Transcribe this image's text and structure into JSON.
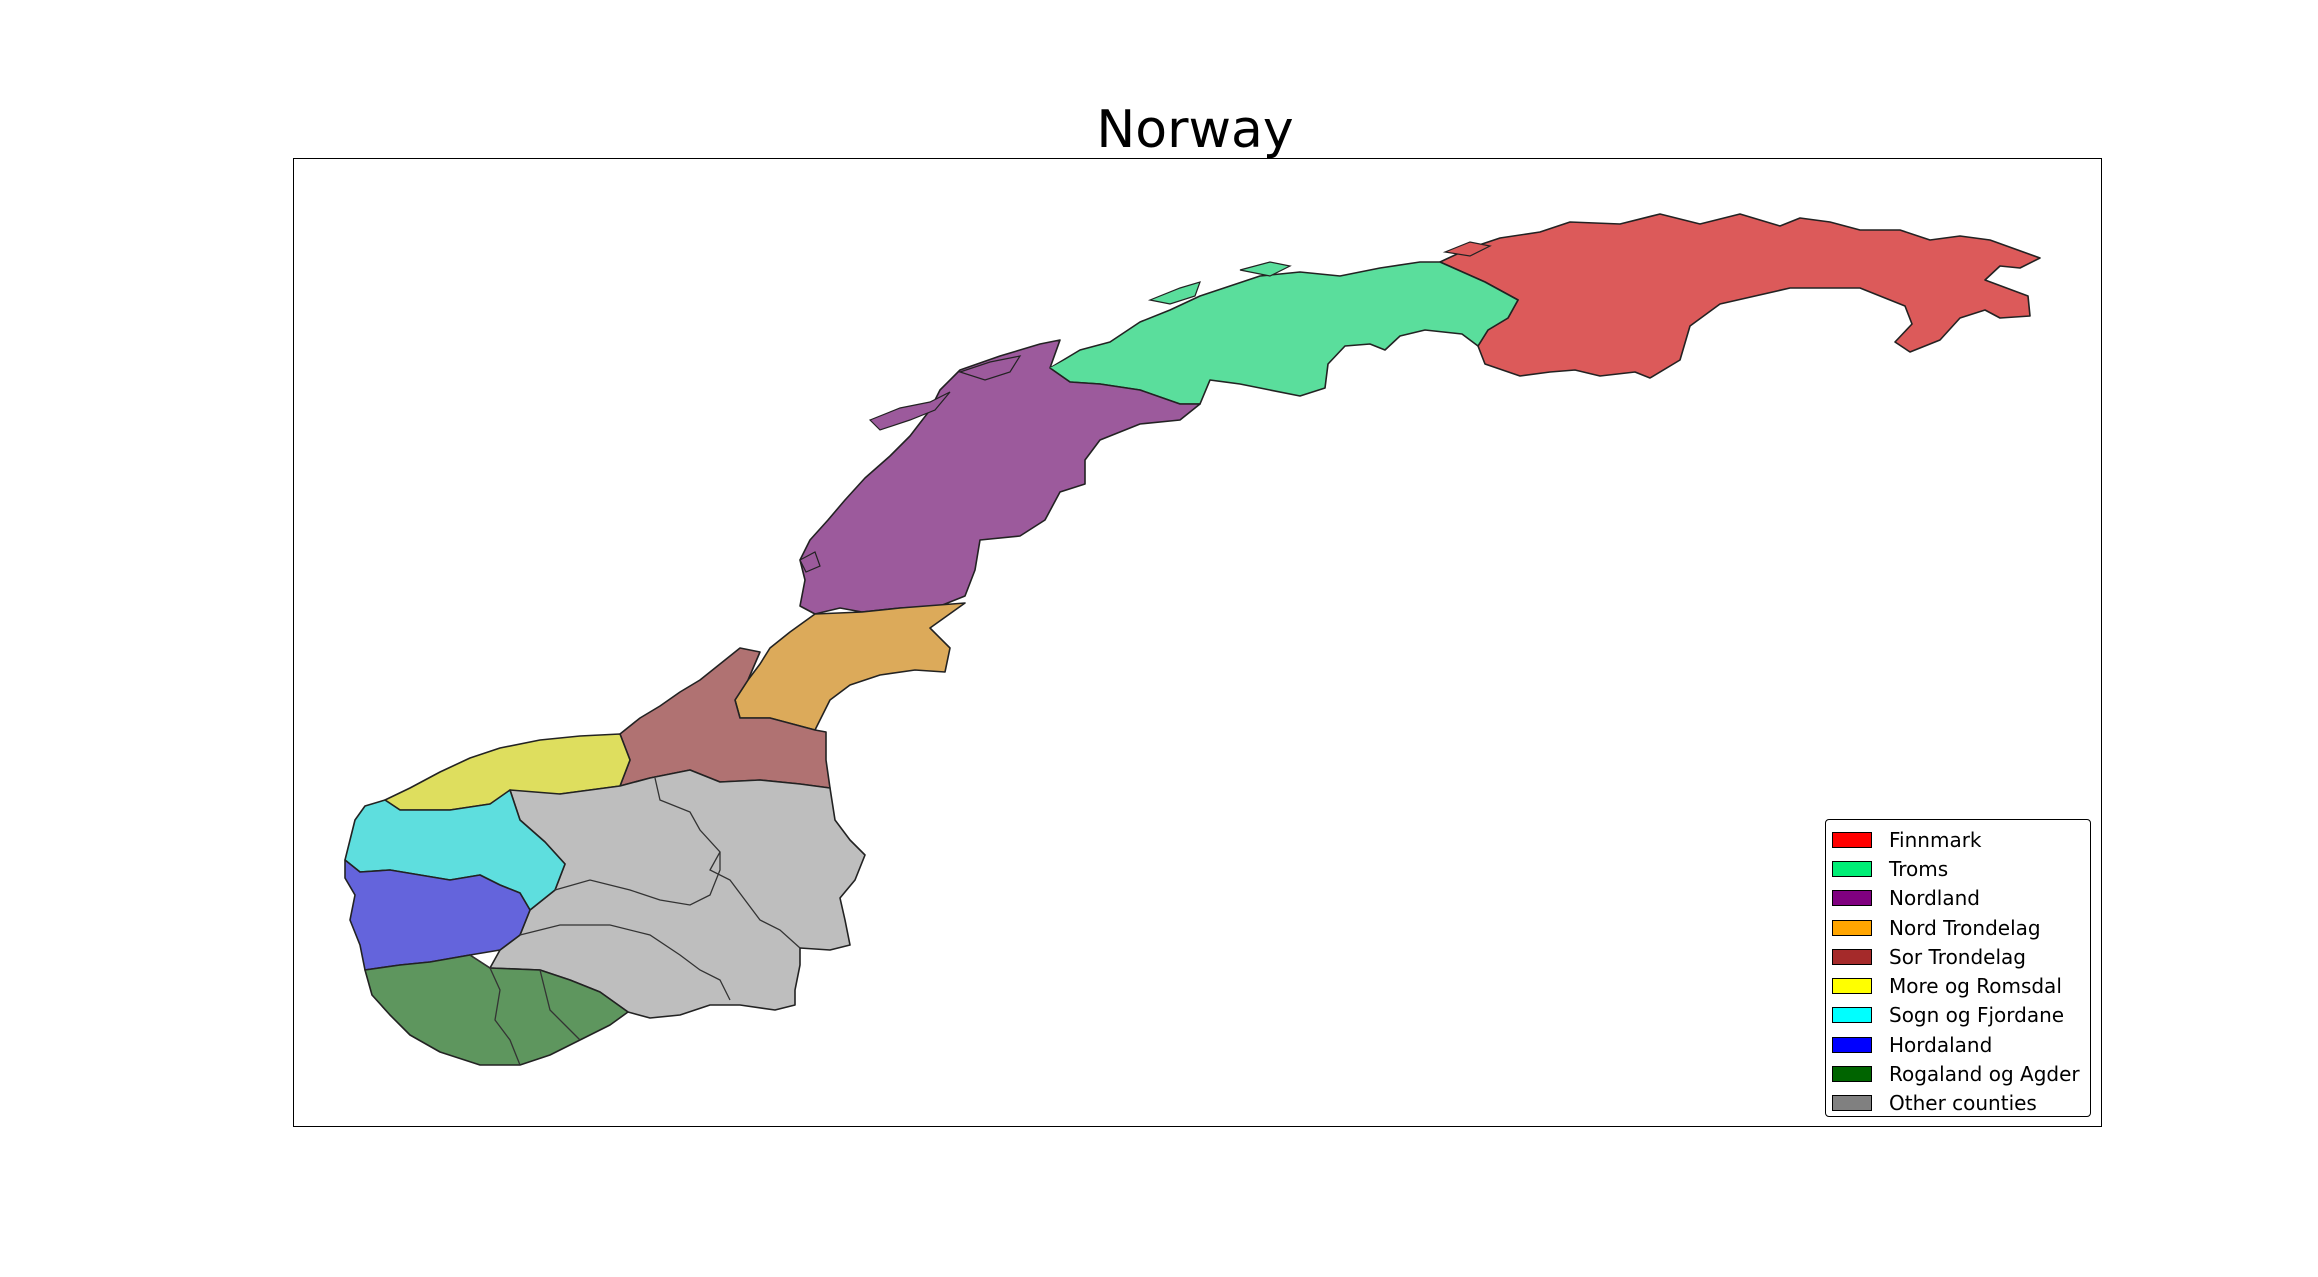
{
  "map": {
    "title": "Norway",
    "colors": {
      "finnmark": "#dc5a5a",
      "troms": "#5ade9c",
      "nordland": "#9c5a9c",
      "nord_trondelag": "#dcaa5a",
      "sor_trondelag": "#b07272",
      "more_og_romsdal": "#dede5e",
      "sogn_og_fjordane": "#5edede",
      "hordaland": "#6464dc",
      "rogaland_og_agder": "#5e965e",
      "other": "#bebebe"
    },
    "legend": [
      {
        "label": "Finnmark",
        "color": "#ff0000"
      },
      {
        "label": "Troms",
        "color": "#00ee76"
      },
      {
        "label": "Nordland",
        "color": "#800080"
      },
      {
        "label": "Nord Trondelag",
        "color": "#ffa500"
      },
      {
        "label": "Sor Trondelag",
        "color": "#a52a2a"
      },
      {
        "label": "More og Romsdal",
        "color": "#ffff00"
      },
      {
        "label": "Sogn og Fjordane",
        "color": "#00ffff"
      },
      {
        "label": "Hordaland",
        "color": "#0000ff"
      },
      {
        "label": "Rogaland og Agder",
        "color": "#006400"
      },
      {
        "label": "Other counties",
        "color": "#808080"
      }
    ]
  }
}
